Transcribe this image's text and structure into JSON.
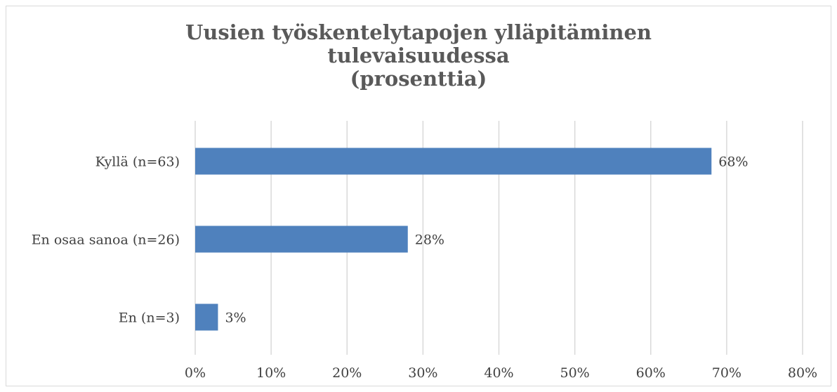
{
  "chart_data": {
    "type": "bar",
    "orientation": "horizontal",
    "title": [
      "Uusien työskentelytapojen ylläpitäminen",
      "tulevaisuudessa",
      "(prosenttia)"
    ],
    "categories": [
      "Kyllä (n=63)",
      "En osaa sanoa (n=26)",
      "En (n=3)"
    ],
    "values": [
      68,
      28,
      3
    ],
    "value_labels": [
      "68%",
      "28%",
      "3%"
    ],
    "color": "#4f81bd",
    "xlim": [
      0,
      80
    ],
    "xticks": [
      {
        "value": 0,
        "label": "0%"
      },
      {
        "value": 10,
        "label": "10%"
      },
      {
        "value": 20,
        "label": "20%"
      },
      {
        "value": 30,
        "label": "30%"
      },
      {
        "value": 40,
        "label": "40%"
      },
      {
        "value": 50,
        "label": "50%"
      },
      {
        "value": 60,
        "label": "60%"
      },
      {
        "value": 70,
        "label": "70%"
      },
      {
        "value": 80,
        "label": "80%"
      }
    ],
    "grid": true
  }
}
